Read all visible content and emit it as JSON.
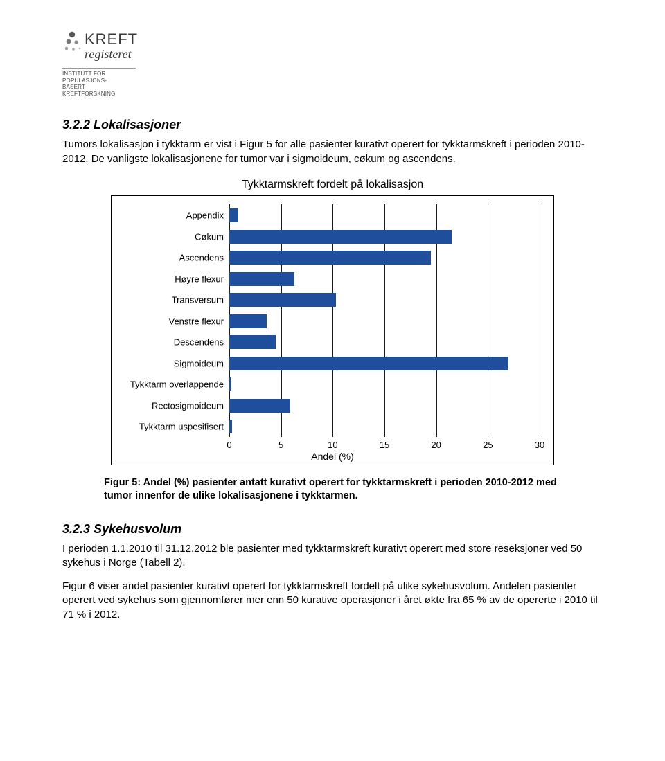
{
  "logo": {
    "main_top": "KREFT",
    "main_bottom": "registeret",
    "sub1": "INSTITUTT FOR POPULASJONS-",
    "sub2": "BASERT KREFTFORSKNING"
  },
  "section1": {
    "heading": "3.2.2  Lokalisasjoner",
    "para": "Tumors lokalisasjon i tykktarm er vist i Figur 5 for alle pasienter kurativt operert for tykktarmskreft i perioden 2010-2012. De vanligste lokalisasjonene for tumor var i sigmoideum, cøkum og ascendens."
  },
  "chart": {
    "title": "Tykktarmskreft fordelt på lokalisasjon",
    "x_axis_title": "Andel (%)",
    "x_ticks": [
      0,
      5,
      10,
      15,
      20,
      25,
      30
    ],
    "xmax": 30,
    "bar_color": "#1f4e9c",
    "grid_color": "#000000",
    "categories": [
      {
        "label": "Appendix",
        "value": 0.9
      },
      {
        "label": "Cøkum",
        "value": 21.5
      },
      {
        "label": "Ascendens",
        "value": 19.5
      },
      {
        "label": "Høyre flexur",
        "value": 6.3
      },
      {
        "label": "Transversum",
        "value": 10.3
      },
      {
        "label": "Venstre flexur",
        "value": 3.6
      },
      {
        "label": "Descendens",
        "value": 4.5
      },
      {
        "label": "Sigmoideum",
        "value": 27.0
      },
      {
        "label": "Tykktarm overlappende",
        "value": 0.2
      },
      {
        "label": "Rectosigmoideum",
        "value": 5.9
      },
      {
        "label": "Tykktarm uspesifisert",
        "value": 0.3
      }
    ]
  },
  "caption": "Figur 5: Andel (%) pasienter antatt kurativt operert for tykktarmskreft i perioden 2010-2012 med tumor innenfor de ulike lokalisasjonene i tykktarmen.",
  "section2": {
    "heading": "3.2.3  Sykehusvolum",
    "para1": "I perioden 1.1.2010 til 31.12.2012 ble pasienter med tykktarmskreft kurativt operert med store reseksjoner ved 50 sykehus i Norge (Tabell 2).",
    "para2": "Figur 6 viser andel pasienter kurativt operert for tykktarmskreft fordelt på ulike sykehusvolum. Andelen pasienter operert ved sykehus som gjennomfører mer enn 50 kurative operasjoner i året økte fra 65 % av de opererte i 2010 til 71 % i 2012."
  }
}
